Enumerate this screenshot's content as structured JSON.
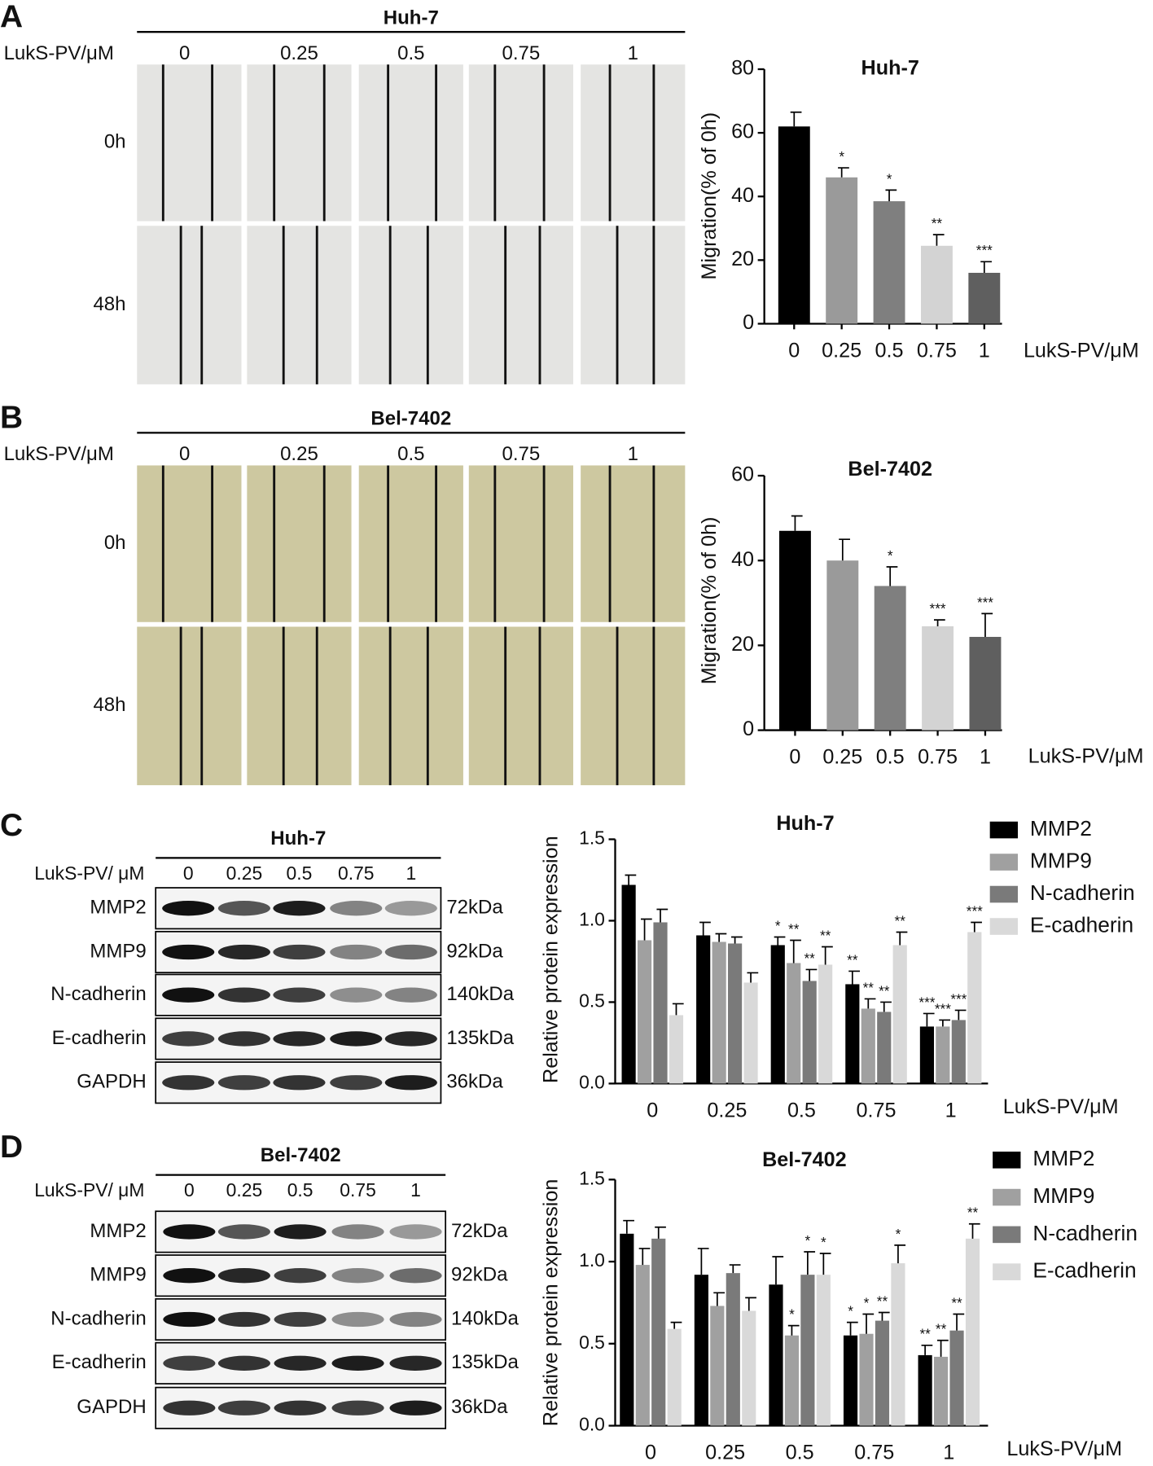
{
  "panels": [
    {
      "letter": "A",
      "cell_line": "Huh-7",
      "dose_label": "LukS-PV/μM",
      "rows": [
        "0h",
        "48h"
      ]
    },
    {
      "letter": "B",
      "cell_line": "Bel-7402",
      "dose_label": "LukS-PV/μM",
      "rows": [
        "0h",
        "48h"
      ]
    },
    {
      "letter": "C",
      "cell_line": "Huh-7",
      "dose_label": "LukS-PV/ μM",
      "blots": [
        {
          "protein": "MMP2",
          "size": "72kDa"
        },
        {
          "protein": "MMP9",
          "size": "92kDa"
        },
        {
          "protein": "N-cadherin",
          "size": "140kDa"
        },
        {
          "protein": "E-cadherin",
          "size": "135kDa"
        },
        {
          "protein": "GAPDH",
          "size": "36kDa"
        }
      ]
    },
    {
      "letter": "D",
      "cell_line": "Bel-7402",
      "dose_label": "LukS-PV/ μM",
      "blots": [
        {
          "protein": "MMP2",
          "size": "72kDa"
        },
        {
          "protein": "MMP9",
          "size": "92kDa"
        },
        {
          "protein": "N-cadherin",
          "size": "140kDa"
        },
        {
          "protein": "E-cadherin",
          "size": "135kDa"
        },
        {
          "protein": "GAPDH",
          "size": "36kDa"
        }
      ]
    }
  ],
  "chart_data": [
    {
      "type": "bar",
      "title": "Huh-7",
      "y_label": "Migration(% of 0h)",
      "x_label": "LukS-PV/μM",
      "categories": [
        "0",
        "0.25",
        "0.5",
        "0.75",
        "1"
      ],
      "values": [
        62,
        46,
        38.5,
        24.5,
        16
      ],
      "errors": [
        4.5,
        3,
        3.5,
        3.5,
        3.5
      ],
      "annotations": [
        null,
        "*",
        "*",
        "**",
        "***"
      ],
      "colors": [
        "#000000",
        "#9a9a9a",
        "#7f7f7f",
        "#d3d3d3",
        "#5f5f5f"
      ],
      "ylim": [
        0,
        80
      ],
      "yticks": [
        0,
        20,
        40,
        60,
        80
      ]
    },
    {
      "type": "bar",
      "title": "Bel-7402",
      "y_label": "Migration(% of 0h)",
      "x_label": "LukS-PV/μM",
      "categories": [
        "0",
        "0.25",
        "0.5",
        "0.75",
        "1"
      ],
      "values": [
        47,
        40,
        34,
        24.5,
        22
      ],
      "errors": [
        3.5,
        5,
        4.5,
        1.5,
        5.5
      ],
      "annotations": [
        null,
        null,
        "*",
        "***",
        "***"
      ],
      "colors": [
        "#000000",
        "#9a9a9a",
        "#7f7f7f",
        "#d3d3d3",
        "#5f5f5f"
      ],
      "ylim": [
        0,
        60
      ],
      "yticks": [
        0,
        20,
        40,
        60
      ]
    },
    {
      "type": "bar",
      "title": "Huh-7",
      "y_label": "Relative protein expression",
      "x_label": "LukS-PV/μM",
      "categories": [
        "0",
        "0.25",
        "0.5",
        "0.75",
        "1"
      ],
      "ylim": [
        0,
        1.5
      ],
      "yticks": [
        {
          "value": 0,
          "label": "0.0"
        },
        0.5,
        {
          "value": 1,
          "label": "1.0"
        },
        1.5
      ],
      "legend": "right",
      "series": [
        {
          "name": "MMP2",
          "color": "#000000",
          "values": [
            1.22,
            0.91,
            0.85,
            0.61,
            0.35
          ],
          "errors": [
            0.06,
            0.08,
            0.05,
            0.08,
            0.08
          ],
          "annotations": [
            null,
            null,
            "*",
            "**",
            "***"
          ]
        },
        {
          "name": "MMP9",
          "color": "#a0a0a0",
          "values": [
            0.88,
            0.87,
            0.74,
            0.46,
            0.35
          ],
          "errors": [
            0.13,
            0.05,
            0.14,
            0.06,
            0.04
          ],
          "annotations": [
            null,
            null,
            "**",
            "**",
            "***"
          ]
        },
        {
          "name": "N-cadherin",
          "color": "#7a7a7a",
          "values": [
            0.99,
            0.86,
            0.63,
            0.44,
            0.39
          ],
          "errors": [
            0.08,
            0.04,
            0.07,
            0.06,
            0.06
          ],
          "annotations": [
            null,
            null,
            "**",
            "**",
            "***"
          ]
        },
        {
          "name": "E-cadherin",
          "color": "#d9d9d9",
          "values": [
            0.42,
            0.62,
            0.73,
            0.85,
            0.93
          ],
          "errors": [
            0.07,
            0.06,
            0.11,
            0.08,
            0.06
          ],
          "annotations": [
            null,
            null,
            "**",
            "**",
            "***"
          ]
        }
      ]
    },
    {
      "type": "bar",
      "title": "Bel-7402",
      "y_label": "Relative protein expression",
      "x_label": "LukS-PV/μM",
      "categories": [
        "0",
        "0.25",
        "0.5",
        "0.75",
        "1"
      ],
      "ylim": [
        0,
        1.5
      ],
      "yticks": [
        {
          "value": 0,
          "label": "0.0"
        },
        0.5,
        {
          "value": 1,
          "label": "1.0"
        },
        1.5
      ],
      "legend": "right",
      "series": [
        {
          "name": "MMP2",
          "color": "#000000",
          "values": [
            1.17,
            0.92,
            0.86,
            0.55,
            0.43
          ],
          "errors": [
            0.08,
            0.16,
            0.17,
            0.08,
            0.06
          ],
          "annotations": [
            null,
            null,
            null,
            "*",
            "**"
          ]
        },
        {
          "name": "MMP9",
          "color": "#a0a0a0",
          "values": [
            0.98,
            0.73,
            0.55,
            0.56,
            0.42
          ],
          "errors": [
            0.1,
            0.08,
            0.06,
            0.12,
            0.1
          ],
          "annotations": [
            null,
            null,
            "*",
            "*",
            "**"
          ]
        },
        {
          "name": "N-cadherin",
          "color": "#7a7a7a",
          "values": [
            1.14,
            0.93,
            0.92,
            0.64,
            0.58
          ],
          "errors": [
            0.07,
            0.05,
            0.14,
            0.05,
            0.1
          ],
          "annotations": [
            null,
            null,
            "*",
            "**",
            "**"
          ]
        },
        {
          "name": "E-cadherin",
          "color": "#d9d9d9",
          "values": [
            0.59,
            0.7,
            0.92,
            0.99,
            1.14
          ],
          "errors": [
            0.04,
            0.08,
            0.13,
            0.11,
            0.09
          ],
          "annotations": [
            null,
            null,
            "*",
            "*",
            "**"
          ]
        }
      ]
    }
  ]
}
